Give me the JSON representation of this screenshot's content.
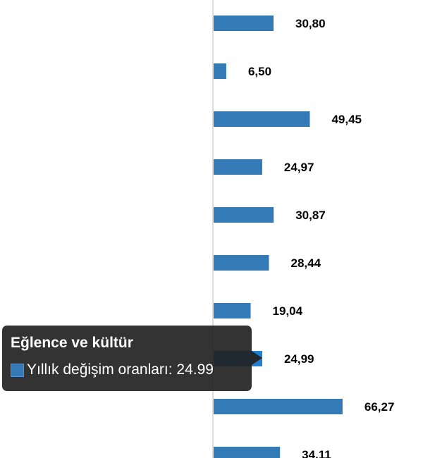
{
  "chart_data": {
    "type": "bar",
    "orientation": "horizontal",
    "values": [
      30.8,
      6.5,
      49.45,
      24.97,
      30.87,
      28.44,
      19.04,
      24.99,
      66.27,
      34.11
    ],
    "data_labels": [
      "30,80",
      "6,50",
      "49,45",
      "24,97",
      "30,87",
      "28,44",
      "19,04",
      "24,99",
      "66,27",
      "34,11"
    ],
    "series_name": "Yıllık değişim oranları",
    "bar_color": "#337ab7",
    "highlight_color": "#1f80d0",
    "highlighted_index": 7,
    "grid": false
  },
  "tooltip": {
    "title": "Eğlence ve kültür",
    "text": "Yıllık değişim oranları: 24.99"
  }
}
